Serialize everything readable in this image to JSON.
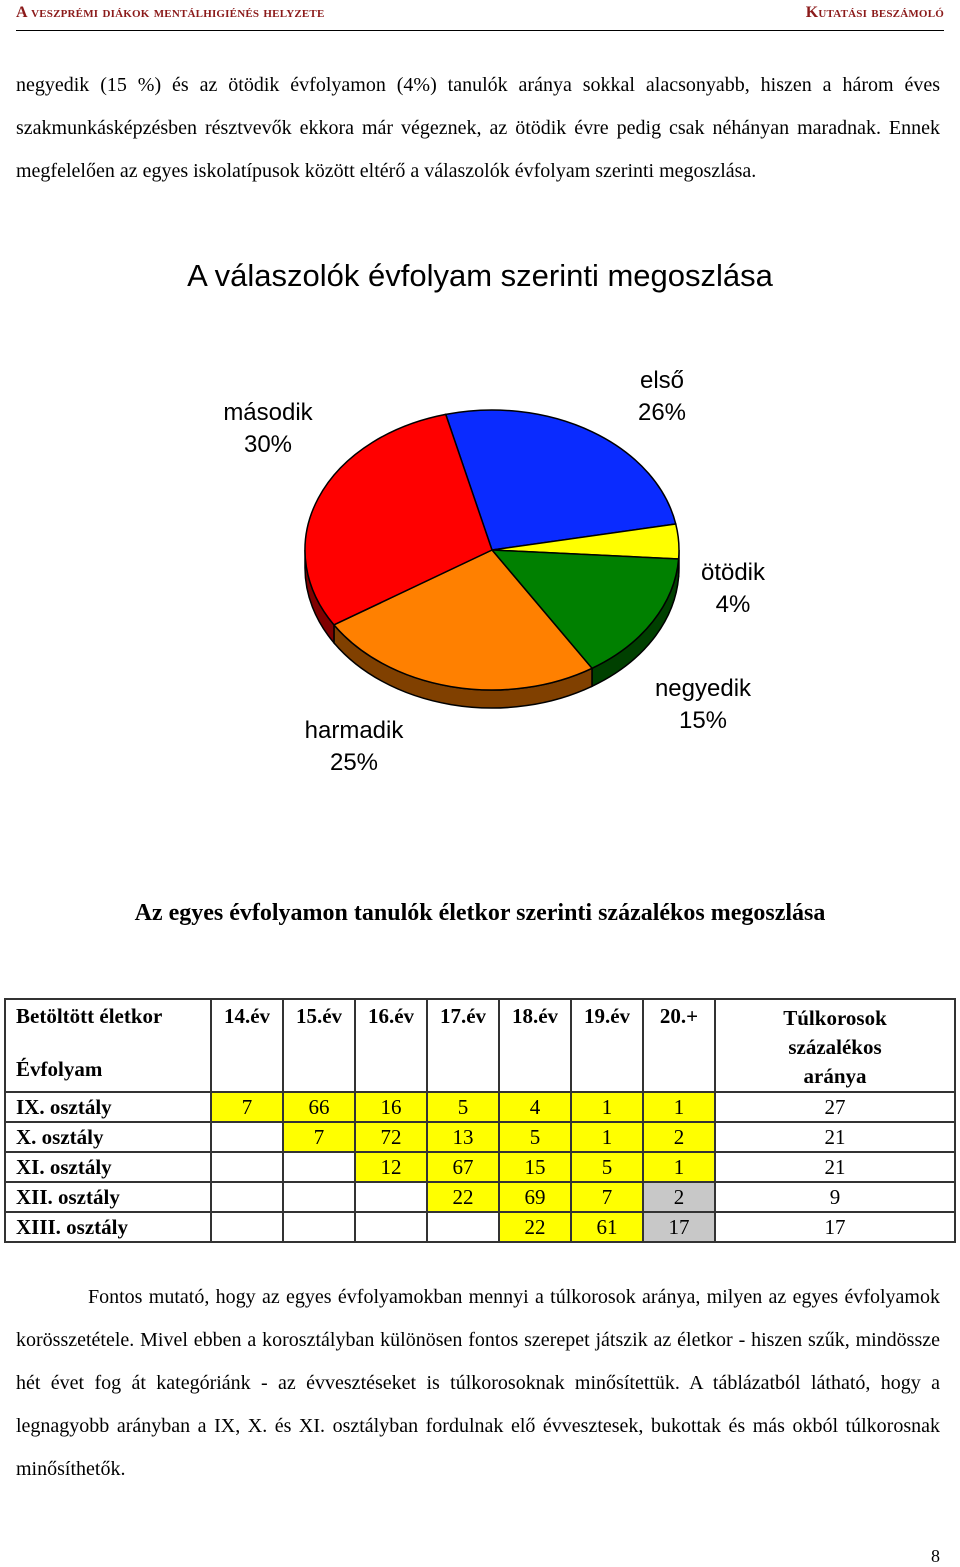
{
  "header": {
    "left": "A veszprémi diákok mentálhigiénés helyzete",
    "right": "Kutatási beszámoló"
  },
  "intro_paragraph": "negyedik (15 %) és az ötödik évfolyamon (4%) tanulók aránya sokkal alacsonyabb, hiszen a három éves szakmunkásképzésben résztvevők ekkora már végeznek, az ötödik évre pedig csak néhányan maradnak. Ennek megfelelően az egyes iskolatípusok között eltérő a válaszolók évfolyam szerinti megoszlása.",
  "chart_title": "A válaszolók évfolyam szerinti  megoszlása",
  "chart_data": {
    "type": "pie",
    "title": "A válaszolók évfolyam szerinti  megoszlása",
    "slices": [
      {
        "label": "első",
        "value": 26,
        "percent_label": "26%",
        "color": "#0a2bff"
      },
      {
        "label": "ötödik",
        "value": 4,
        "percent_label": "4%",
        "color": "#ffff00"
      },
      {
        "label": "negyedik",
        "value": 15,
        "percent_label": "15%",
        "color": "#008000"
      },
      {
        "label": "harmadik",
        "value": 25,
        "percent_label": "25%",
        "color": "#ff8000"
      },
      {
        "label": "második",
        "value": 30,
        "percent_label": "30%",
        "color": "#ff0000"
      }
    ]
  },
  "table_title": "Az egyes évfolyamon tanulók életkor szerinti százalékos megoszlása",
  "table": {
    "corner_top": "Betöltött életkor",
    "corner_bottom": "Évfolyam",
    "columns": [
      "14.év",
      "15.év",
      "16.év",
      "17.év",
      "18.év",
      "19.év",
      "20.+"
    ],
    "last_column_lines": [
      "Túlkorosok",
      "százalékos",
      "aránya"
    ],
    "rows": [
      {
        "label": "IX. osztály",
        "cells": [
          "7",
          "66",
          "16",
          "5",
          "4",
          "1",
          "1"
        ],
        "last": "27"
      },
      {
        "label": "X. osztály",
        "cells": [
          "",
          "7",
          "72",
          "13",
          "5",
          "1",
          "2"
        ],
        "last": "21"
      },
      {
        "label": "XI. osztály",
        "cells": [
          "",
          "",
          "12",
          "67",
          "15",
          "5",
          "1"
        ],
        "last": "21"
      },
      {
        "label": "XII. osztály",
        "cells": [
          "",
          "",
          "",
          "22",
          "69",
          "7",
          "2"
        ],
        "last": "9"
      },
      {
        "label": "XIII. osztály",
        "cells": [
          "",
          "",
          "",
          "",
          "22",
          "61",
          "17"
        ],
        "last": "17"
      }
    ]
  },
  "closing_paragraph": "Fontos mutató, hogy az egyes évfolyamokban mennyi a túlkorosok aránya, milyen az egyes évfolyamok korösszetétele. Mivel ebben a korosztályban különösen fontos szerepet játszik az életkor - hiszen  szűk, mindössze hét évet fog át kategóriánk -  az évvesztéseket is túlkorosoknak minősítettük. A táblázatból látható, hogy a legnagyobb arányban a IX, X. és XI. osztályban fordulnak elő évvesztesek, bukottak és más okból túlkorosnak minősíthetők.",
  "page_number": "8"
}
